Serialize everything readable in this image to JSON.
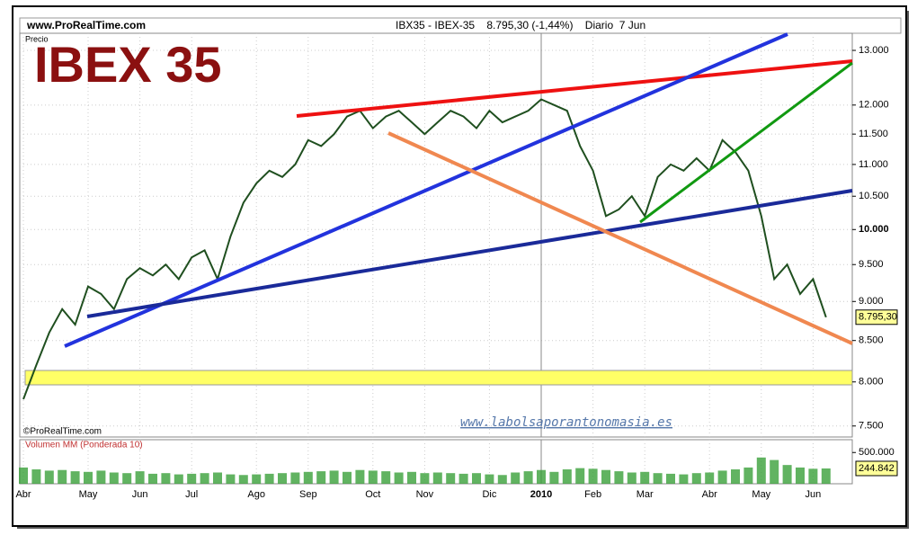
{
  "chart_data": [
    {
      "type": "line",
      "title": "IBEX 35",
      "site": "www.ProRealTime.com",
      "header": "IBX35 - IBEX-35    8.795,30 (-1,44%)    Diario  7 Jun",
      "subtitle": "Precio",
      "credit": "©ProRealTime.com",
      "watermark": "www.labolsaporantonomasia.es",
      "last_value_label": "8.795,30",
      "categories": [
        "Abr",
        null,
        null,
        null,
        null,
        "May",
        null,
        null,
        null,
        "Jun",
        null,
        null,
        null,
        "Jul",
        null,
        null,
        null,
        null,
        "Ago",
        null,
        null,
        null,
        "Sep",
        null,
        null,
        null,
        null,
        "Oct",
        null,
        null,
        null,
        "Nov",
        null,
        null,
        null,
        null,
        "Dic",
        null,
        null,
        null,
        "2010",
        null,
        null,
        null,
        "Feb",
        null,
        null,
        null,
        "Mar",
        null,
        null,
        null,
        null,
        "Abr",
        null,
        null,
        null,
        "May",
        null,
        null,
        null,
        "Jun",
        null
      ],
      "values": [
        7800,
        8200,
        8600,
        8900,
        8700,
        9200,
        9100,
        8900,
        9300,
        9450,
        9350,
        9500,
        9300,
        9600,
        9700,
        9300,
        9900,
        10400,
        10700,
        10900,
        10800,
        11000,
        11400,
        11300,
        11500,
        11800,
        11900,
        11600,
        11800,
        11900,
        11700,
        11500,
        11700,
        11900,
        11800,
        11600,
        11900,
        11700,
        11800,
        11900,
        12100,
        12000,
        11900,
        11300,
        10900,
        10200,
        10300,
        10500,
        10200,
        10800,
        11000,
        10900,
        11100,
        10900,
        11400,
        11200,
        10900,
        10200,
        9300,
        9500,
        9100,
        9300,
        8795.3
      ],
      "color": "#1f4f1f",
      "log_scale": true,
      "grid": true,
      "ylim": [
        7380,
        13330
      ],
      "yticks": [
        {
          "value": 7500,
          "label": "7.500"
        },
        {
          "value": 8000,
          "label": "8.000"
        },
        {
          "value": 8500,
          "label": "8.500"
        },
        {
          "value": 9000,
          "label": "9.000"
        },
        {
          "value": 9500,
          "label": "9.500"
        },
        {
          "value": 10000,
          "label": "10.000"
        },
        {
          "value": 10500,
          "label": "10.500"
        },
        {
          "value": 11000,
          "label": "11.000"
        },
        {
          "value": 11500,
          "label": "11.500"
        },
        {
          "value": 12000,
          "label": "12.000"
        },
        {
          "value": 13000,
          "label": "13.000"
        }
      ]
    },
    {
      "type": "bar",
      "title": "Volumen MM (Ponderada 10)",
      "last_value_label": "244.842",
      "values": [
        260000,
        230000,
        210000,
        220000,
        200000,
        190000,
        210000,
        180000,
        170000,
        200000,
        160000,
        170000,
        150000,
        160000,
        170000,
        180000,
        150000,
        140000,
        150000,
        160000,
        170000,
        180000,
        190000,
        200000,
        210000,
        190000,
        220000,
        210000,
        200000,
        180000,
        190000,
        170000,
        180000,
        170000,
        160000,
        170000,
        150000,
        140000,
        180000,
        200000,
        220000,
        190000,
        230000,
        250000,
        240000,
        220000,
        200000,
        180000,
        190000,
        170000,
        160000,
        150000,
        170000,
        180000,
        210000,
        230000,
        260000,
        420000,
        380000,
        300000,
        260000,
        240000,
        244842
      ],
      "color": "#3aa03a",
      "ylim": [
        0,
        705000
      ],
      "yticks": [
        {
          "value": 500000,
          "label": "500.000"
        }
      ]
    }
  ]
}
